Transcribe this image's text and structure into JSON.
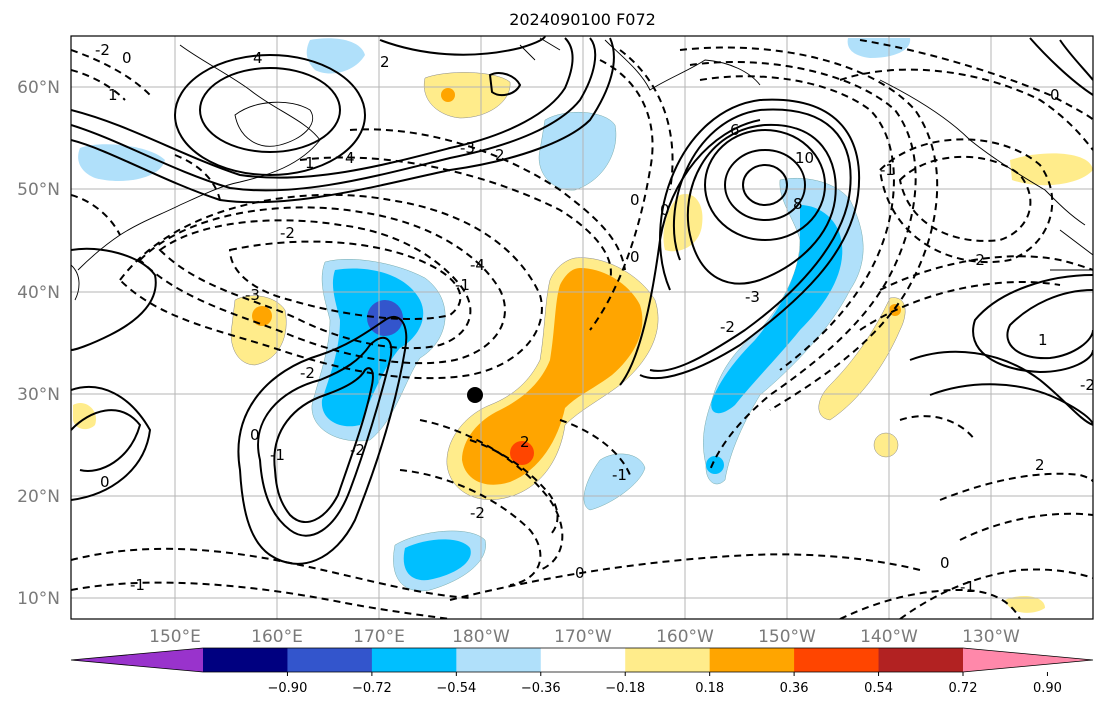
{
  "title": "2024090100 F072",
  "map": {
    "lat_labels": [
      "60°N",
      "50°N",
      "40°N",
      "30°N",
      "20°N",
      "10°N"
    ],
    "lon_labels": [
      "150°E",
      "160°E",
      "170°E",
      "180°W",
      "170°W",
      "160°W",
      "150°W",
      "140°W",
      "130°W"
    ],
    "contour_labels": [
      "-2",
      "0",
      "4",
      "2",
      "1",
      "1",
      "4",
      "-3",
      "2",
      "0",
      "0",
      "0",
      "-1",
      "-2",
      "6",
      "8",
      "10",
      "-3",
      "-4",
      "-2",
      "-2",
      "-3",
      "0",
      "-1",
      "-2",
      "2",
      "-1",
      "-2",
      "1",
      "-2",
      "0",
      "-1",
      "2",
      "-2",
      "0",
      "-1",
      "0",
      "-1",
      "0"
    ]
  },
  "colorbar": {
    "ticks": [
      "−0.90",
      "−0.72",
      "−0.54",
      "−0.36",
      "−0.18",
      "0.18",
      "0.36",
      "0.54",
      "0.72",
      "0.90"
    ],
    "colors": [
      "#9933cc",
      "#000080",
      "#3355cc",
      "#00bfff",
      "#b0e0fa",
      "#ffffff",
      "#ffec8b",
      "#ffa500",
      "#ff4500",
      "#b22222",
      "#ff88aa"
    ]
  }
}
